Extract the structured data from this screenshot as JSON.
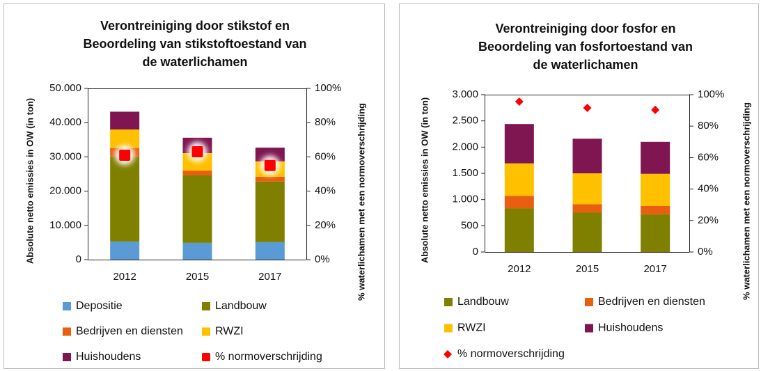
{
  "chart_data": [
    {
      "type": "bar",
      "stacked": true,
      "title": [
        "Verontreiniging  door stikstof en",
        "Beoordeling van stikstoftoestand van",
        "de waterlichamen"
      ],
      "y_label": "Absolute netto emissies in OW (in ton)",
      "y2_label": "% waterlichamen met een normoverschrijding",
      "categories": [
        "2012",
        "2015",
        "2017"
      ],
      "series": [
        {
          "name": "Depositie",
          "color": "#5b9bd5",
          "values": [
            5300,
            4900,
            5100
          ]
        },
        {
          "name": "Landbouw",
          "color": "#808000",
          "values": [
            24800,
            19700,
            17700
          ]
        },
        {
          "name": "Bedrijven en diensten",
          "color": "#e8600f",
          "values": [
            2500,
            1400,
            1400
          ]
        },
        {
          "name": "RWZI",
          "color": "#ffc000",
          "values": [
            5400,
            5100,
            4500
          ]
        },
        {
          "name": "Huishoudens",
          "color": "#7f1652",
          "values": [
            5200,
            4500,
            4000
          ]
        },
        {
          "name": "% normoverschrijding",
          "color": "#ff0000",
          "axis": "y2",
          "marker": "square",
          "values": [
            61,
            63,
            55
          ]
        }
      ],
      "ylim": [
        0,
        50000
      ],
      "yticks": [
        0,
        {
          "value": 10000,
          "label": "10.000"
        },
        {
          "value": 20000,
          "label": "20.000"
        },
        {
          "value": 30000,
          "label": "30.000"
        },
        {
          "value": 40000,
          "label": "40.000"
        },
        {
          "value": 50000,
          "label": "50.000"
        }
      ],
      "y2lim": [
        0,
        100
      ],
      "y2ticks": [
        {
          "value": 0,
          "label": "0%"
        },
        {
          "value": 20,
          "label": "20%"
        },
        {
          "value": 40,
          "label": "40%"
        },
        {
          "value": 60,
          "label": "60%"
        },
        {
          "value": 80,
          "label": "80%"
        },
        {
          "value": 100,
          "label": "100%"
        }
      ],
      "legend": "bottom",
      "grid": false
    },
    {
      "type": "bar",
      "stacked": true,
      "title": [
        "Verontreiniging  door fosfor en",
        "Beoordeling van fosfortoestand  van",
        "de waterlichamen"
      ],
      "y_label": "Absolute netto emissies in OW (in ton)",
      "y2_label": "% waterlichamen met een normoverschrijding",
      "categories": [
        "2012",
        "2015",
        "2017"
      ],
      "series": [
        {
          "name": "Landbouw",
          "color": "#808000",
          "values": [
            830,
            750,
            720
          ]
        },
        {
          "name": "Bedrijven en diensten",
          "color": "#e8600f",
          "values": [
            240,
            160,
            160
          ]
        },
        {
          "name": "RWZI",
          "color": "#ffc000",
          "values": [
            620,
            590,
            610
          ]
        },
        {
          "name": "Huishoudens",
          "color": "#7f1652",
          "values": [
            750,
            660,
            610
          ]
        },
        {
          "name": "% normoverschrijding",
          "color": "#ff0000",
          "axis": "y2",
          "marker": "diamond",
          "values": [
            95.6,
            91.6,
            90.3
          ]
        }
      ],
      "ylim": [
        0,
        3000
      ],
      "yticks": [
        0,
        500,
        {
          "value": 1000,
          "label": "1.000"
        },
        {
          "value": 1500,
          "label": "1.500"
        },
        {
          "value": 2000,
          "label": "2.000"
        },
        {
          "value": 2500,
          "label": "2.500"
        },
        {
          "value": 3000,
          "label": "3.000"
        }
      ],
      "y2lim": [
        0,
        100
      ],
      "y2ticks": [
        {
          "value": 0,
          "label": "0%"
        },
        {
          "value": 20,
          "label": "20%"
        },
        {
          "value": 40,
          "label": "40%"
        },
        {
          "value": 60,
          "label": "60%"
        },
        {
          "value": 80,
          "label": "80%"
        },
        {
          "value": 100,
          "label": "100%"
        }
      ],
      "legend": "bottom",
      "grid": false
    }
  ]
}
